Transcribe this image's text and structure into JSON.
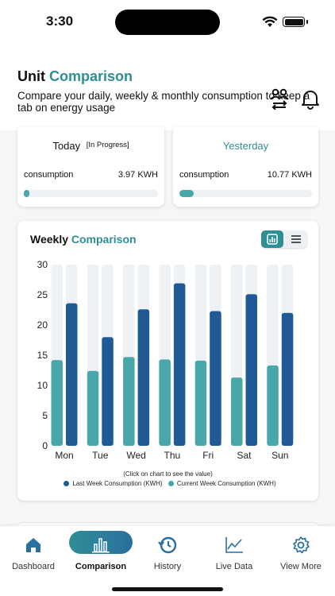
{
  "status_bar": {
    "time": "3:30"
  },
  "header": {
    "title_prefix": "Unit",
    "title_accent": "Comparison",
    "subtitle": "Compare your daily, weekly & monthly consumption to keep a tab on energy usage"
  },
  "today": {
    "title": "Today",
    "badge": "[In Progress]",
    "label": "consumption",
    "value": "3.97 KWH",
    "progress": 0.04
  },
  "yesterday": {
    "title": "Yesterday",
    "label": "consumption",
    "value": "10.77 KWH",
    "progress": 0.11
  },
  "weekly": {
    "title_prefix": "Weekly",
    "title_accent": "Comparison",
    "hint": "(Click on chart to see the value)"
  },
  "colors": {
    "accent": "#2f8e93",
    "last_week": "#1f5a96",
    "current_week": "#4aa7a9",
    "bar_track": "#eef2f5"
  },
  "chart_data": {
    "type": "bar",
    "categories": [
      "Mon",
      "Tue",
      "Wed",
      "Thu",
      "Fri",
      "Sat",
      "Sun"
    ],
    "series": [
      {
        "name": "Current Week Consumption (KWH)",
        "values": [
          14.2,
          12.4,
          14.7,
          14.3,
          14.1,
          11.3,
          13.3
        ]
      },
      {
        "name": "Last Week Consumption (KWH)",
        "values": [
          23.6,
          18.0,
          22.6,
          26.9,
          22.3,
          25.1,
          22.0
        ]
      }
    ],
    "yticks": [
      "0",
      "5",
      "10",
      "15",
      "20",
      "25",
      "30"
    ],
    "ylim": [
      0,
      30
    ],
    "legend": [
      "Last Week Consumption (KWH)",
      "Current Week Consumption (KWH)"
    ],
    "legend_position": "bottom"
  },
  "tabs": [
    {
      "label": "Dashboard",
      "icon": "home-icon"
    },
    {
      "label": "Comparison",
      "icon": "bar-chart-icon"
    },
    {
      "label": "History",
      "icon": "history-icon"
    },
    {
      "label": "Live Data",
      "icon": "line-chart-icon"
    },
    {
      "label": "View More",
      "icon": "gear-icon"
    }
  ]
}
